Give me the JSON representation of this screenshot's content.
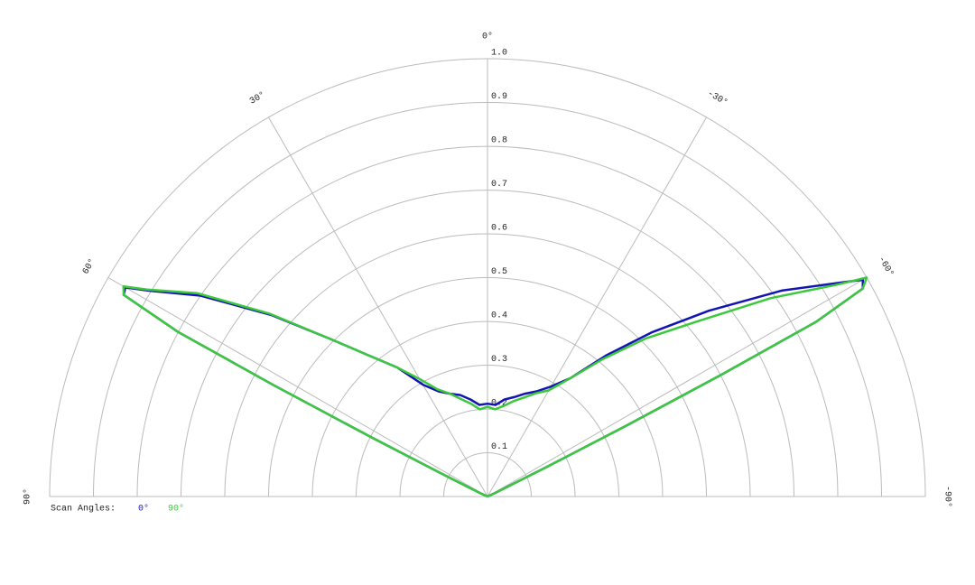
{
  "chart_data": {
    "type": "polar",
    "theta": [
      -90,
      -70,
      -65,
      -63.5,
      -63,
      -62.5,
      -62,
      -61,
      -60,
      -58.7,
      -55,
      -50,
      -45,
      -40,
      -35,
      -30,
      -25,
      -20,
      -15,
      -10,
      -5,
      0,
      5,
      10,
      15,
      20,
      25,
      30,
      35,
      40,
      45,
      50,
      55,
      58.7,
      60,
      61,
      62,
      62.5,
      63,
      63.5,
      65,
      70,
      90
    ],
    "series": [
      {
        "name": "0°",
        "color": "#1414b4",
        "values": [
          0,
          0,
          0.02,
          0.15,
          0.35,
          0.6,
          0.85,
          0.98,
          0.99,
          0.94,
          0.82,
          0.66,
          0.53,
          0.42,
          0.33,
          0.29,
          0.265,
          0.25,
          0.235,
          0.225,
          0.21,
          0.212,
          0.21,
          0.225,
          0.24,
          0.25,
          0.265,
          0.295,
          0.36,
          0.42,
          0.51,
          0.645,
          0.8,
          0.905,
          0.955,
          0.95,
          0.8,
          0.55,
          0.3,
          0.12,
          0.02,
          0,
          0
        ]
      },
      {
        "name": "90°",
        "color": "#3cc83c",
        "values": [
          0,
          0,
          0.02,
          0.15,
          0.35,
          0.6,
          0.85,
          0.98,
          1.0,
          0.93,
          0.79,
          0.62,
          0.51,
          0.41,
          0.33,
          0.28,
          0.26,
          0.24,
          0.225,
          0.21,
          0.2,
          0.205,
          0.2,
          0.215,
          0.23,
          0.25,
          0.27,
          0.31,
          0.36,
          0.42,
          0.51,
          0.65,
          0.81,
          0.91,
          0.96,
          0.95,
          0.8,
          0.55,
          0.3,
          0.12,
          0.02,
          0,
          0
        ]
      }
    ],
    "rlim": [
      0,
      1
    ],
    "rticks": [
      0.1,
      0.2,
      0.3,
      0.4,
      0.5,
      0.6,
      0.7,
      0.8,
      0.9,
      {
        "value": 1,
        "label": "1.0"
      }
    ],
    "thetaticks": [
      {
        "value": -90,
        "label": "-90°"
      },
      {
        "value": -60,
        "label": "-60°"
      },
      {
        "value": -30,
        "label": "-30°"
      },
      {
        "value": 0,
        "label": "0°"
      },
      {
        "value": 30,
        "label": "30°"
      },
      {
        "value": 60,
        "label": "60°"
      },
      {
        "value": 90,
        "label": "90°"
      }
    ],
    "legend_title": "Scan Angles:",
    "grid": true
  }
}
